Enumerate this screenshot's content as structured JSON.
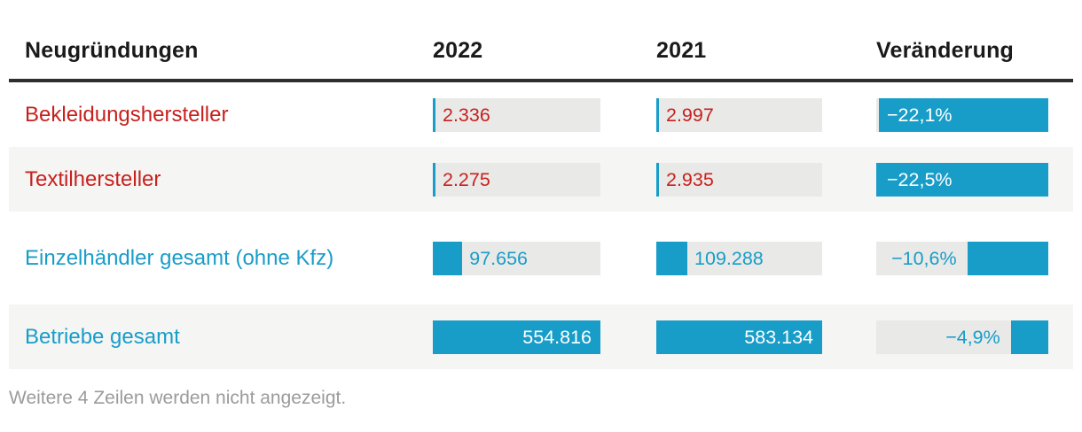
{
  "chart_data": {
    "type": "table",
    "title": "Neugründungen",
    "columns": [
      "Neugründungen",
      "2022",
      "2021",
      "Veränderung"
    ],
    "rows": [
      [
        "Bekleidungshersteller",
        2336,
        2997,
        -22.1
      ],
      [
        "Textilhersteller",
        2275,
        2935,
        -22.5
      ],
      [
        "Einzelhändler gesamt (ohne Kfz)",
        97656,
        109288,
        -10.6
      ],
      [
        "Betriebe gesamt",
        554816,
        583134,
        -4.9
      ]
    ],
    "bar_scale_max": {
      "y2022": 554816,
      "y2021": 583134,
      "change_pct": 22.5
    },
    "note": "Weitere 4 Zeilen werden nicht angezeigt."
  },
  "header": {
    "col_label": "Neugründungen",
    "col_2022": "2022",
    "col_2021": "2021",
    "col_change": "Veränderung"
  },
  "colors": {
    "bar_blue": "#189dc9",
    "label_red": "#c7211e",
    "label_blue": "#189dc9",
    "inside_white": "#ffffff",
    "header_text": "#1a1a1a",
    "header_border": "#2e2e2e",
    "zebra_bg": "#f5f5f4",
    "track_gray": "#e9e9e7",
    "footer_gray": "#9b9b9b"
  },
  "table": {
    "col_max": {
      "y2022": 554816,
      "y2021": 583134,
      "change": 22.5
    },
    "rows": [
      {
        "label": "Bekleidungshersteller",
        "label_color": "#c7211e",
        "zebra": false,
        "min_height": 73,
        "y2022": {
          "text": "2.336",
          "value": 2336,
          "position": "outside",
          "text_color": "#c7211e"
        },
        "y2021": {
          "text": "2.997",
          "value": 2997,
          "position": "outside",
          "text_color": "#c7211e"
        },
        "change": {
          "text": "−22,1%",
          "value": 22.1,
          "position": "inside",
          "text_color": "#ffffff"
        }
      },
      {
        "label": "Textilhersteller",
        "label_color": "#c7211e",
        "zebra": true,
        "min_height": 73,
        "y2022": {
          "text": "2.275",
          "value": 2275,
          "position": "outside",
          "text_color": "#c7211e"
        },
        "y2021": {
          "text": "2.935",
          "value": 2935,
          "position": "outside",
          "text_color": "#c7211e"
        },
        "change": {
          "text": "−22,5%",
          "value": 22.5,
          "position": "inside",
          "text_color": "#ffffff"
        }
      },
      {
        "label": "Einzelhändler gesamt (ohne Kfz)",
        "label_color": "#189dc9",
        "zebra": false,
        "min_height": 105,
        "y2022": {
          "text": "97.656",
          "value": 97656,
          "position": "outside",
          "text_color": "#189dc9"
        },
        "y2021": {
          "text": "109.288",
          "value": 109288,
          "position": "outside",
          "text_color": "#189dc9"
        },
        "change": {
          "text": "−10,6%",
          "value": 10.6,
          "position": "outside",
          "text_color": "#189dc9"
        }
      },
      {
        "label": "Betriebe gesamt",
        "label_color": "#189dc9",
        "zebra": true,
        "min_height": 73,
        "y2022": {
          "text": "554.816",
          "value": 554816,
          "position": "inside",
          "text_color": "#ffffff"
        },
        "y2021": {
          "text": "583.134",
          "value": 583134,
          "position": "inside",
          "text_color": "#ffffff"
        },
        "change": {
          "text": "−4,9%",
          "value": 4.9,
          "position": "outside",
          "text_color": "#189dc9"
        }
      }
    ],
    "footer": "Weitere 4 Zeilen werden nicht angezeigt."
  }
}
